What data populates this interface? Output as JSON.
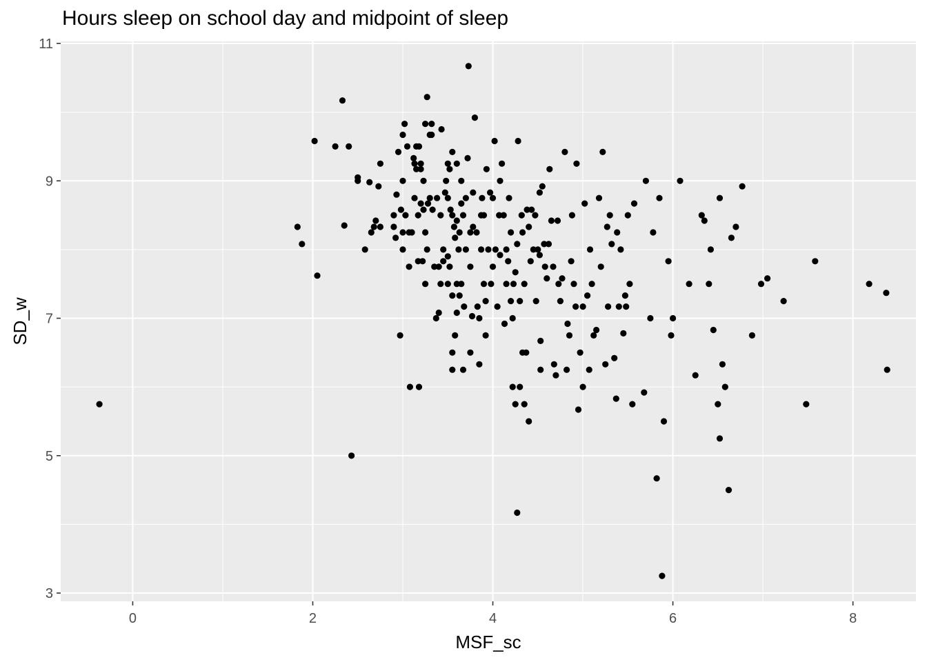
{
  "chart_data": {
    "type": "scatter",
    "title": "Hours sleep on school day and midpoint of sleep",
    "xlabel": "MSF_sc",
    "ylabel": "SD_w",
    "xlim": [
      -0.8,
      8.7
    ],
    "ylim": [
      2.88,
      11.03
    ],
    "x_ticks": [
      0,
      2,
      4,
      6,
      8
    ],
    "y_ticks": [
      3,
      5,
      7,
      9,
      11
    ],
    "grid": true,
    "colors": {
      "panel": "#ebebeb",
      "grid": "#ffffff",
      "point": "#000000"
    },
    "points": [
      [
        -0.37,
        5.75
      ],
      [
        1.83,
        8.33
      ],
      [
        1.88,
        8.08
      ],
      [
        2.02,
        9.58
      ],
      [
        2.05,
        7.62
      ],
      [
        2.25,
        9.5
      ],
      [
        2.33,
        10.17
      ],
      [
        2.35,
        8.35
      ],
      [
        2.4,
        9.5
      ],
      [
        2.43,
        5.0
      ],
      [
        2.5,
        9.0
      ],
      [
        2.5,
        9.05
      ],
      [
        2.58,
        8.0
      ],
      [
        2.63,
        8.98
      ],
      [
        2.65,
        8.25
      ],
      [
        2.68,
        8.33
      ],
      [
        2.7,
        8.42
      ],
      [
        2.73,
        8.92
      ],
      [
        2.75,
        8.33
      ],
      [
        2.75,
        9.25
      ],
      [
        2.9,
        8.5
      ],
      [
        2.9,
        8.33
      ],
      [
        2.92,
        8.17
      ],
      [
        2.93,
        8.8
      ],
      [
        2.95,
        9.42
      ],
      [
        2.97,
        6.75
      ],
      [
        2.98,
        8.58
      ],
      [
        3.0,
        8.0
      ],
      [
        3.0,
        8.25
      ],
      [
        3.0,
        9.0
      ],
      [
        3.0,
        9.67
      ],
      [
        3.02,
        9.83
      ],
      [
        3.03,
        8.5
      ],
      [
        3.05,
        9.5
      ],
      [
        3.07,
        7.75
      ],
      [
        3.07,
        8.25
      ],
      [
        3.08,
        6.0
      ],
      [
        3.1,
        8.25
      ],
      [
        3.12,
        9.33
      ],
      [
        3.13,
        8.75
      ],
      [
        3.13,
        9.25
      ],
      [
        3.15,
        9.17
      ],
      [
        3.15,
        9.5
      ],
      [
        3.17,
        8.5
      ],
      [
        3.17,
        7.83
      ],
      [
        3.18,
        6.0
      ],
      [
        3.18,
        9.5
      ],
      [
        3.2,
        9.25
      ],
      [
        3.2,
        8.67
      ],
      [
        3.2,
        9.17
      ],
      [
        3.22,
        7.83
      ],
      [
        3.23,
        8.58
      ],
      [
        3.23,
        9.0
      ],
      [
        3.25,
        9.83
      ],
      [
        3.25,
        8.25
      ],
      [
        3.25,
        7.5
      ],
      [
        3.27,
        8.0
      ],
      [
        3.27,
        10.22
      ],
      [
        3.28,
        8.67
      ],
      [
        3.3,
        8.75
      ],
      [
        3.3,
        9.67
      ],
      [
        3.32,
        9.67
      ],
      [
        3.32,
        9.83
      ],
      [
        3.33,
        8.58
      ],
      [
        3.35,
        7.75
      ],
      [
        3.37,
        7.0
      ],
      [
        3.38,
        8.75
      ],
      [
        3.4,
        7.08
      ],
      [
        3.4,
        7.75
      ],
      [
        3.42,
        8.5
      ],
      [
        3.42,
        7.5
      ],
      [
        3.43,
        9.75
      ],
      [
        3.45,
        8.0
      ],
      [
        3.45,
        7.83
      ],
      [
        3.47,
        8.83
      ],
      [
        3.48,
        9.0
      ],
      [
        3.5,
        7.5
      ],
      [
        3.5,
        9.25
      ],
      [
        3.5,
        8.75
      ],
      [
        3.5,
        7.9
      ],
      [
        3.52,
        9.17
      ],
      [
        3.52,
        7.75
      ],
      [
        3.53,
        8.58
      ],
      [
        3.55,
        8.5
      ],
      [
        3.55,
        6.25
      ],
      [
        3.55,
        6.5
      ],
      [
        3.55,
        7.33
      ],
      [
        3.55,
        9.42
      ],
      [
        3.57,
        8.33
      ],
      [
        3.58,
        6.75
      ],
      [
        3.58,
        8.17
      ],
      [
        3.6,
        7.08
      ],
      [
        3.6,
        7.5
      ],
      [
        3.6,
        9.25
      ],
      [
        3.6,
        8.42
      ],
      [
        3.62,
        8.0
      ],
      [
        3.63,
        7.33
      ],
      [
        3.63,
        8.25
      ],
      [
        3.65,
        7.5
      ],
      [
        3.65,
        8.67
      ],
      [
        3.65,
        9.0
      ],
      [
        3.67,
        6.25
      ],
      [
        3.67,
        8.5
      ],
      [
        3.68,
        7.17
      ],
      [
        3.7,
        8.75
      ],
      [
        3.7,
        8.0
      ],
      [
        3.72,
        9.33
      ],
      [
        3.73,
        10.67
      ],
      [
        3.75,
        6.5
      ],
      [
        3.75,
        7.75
      ],
      [
        3.75,
        8.25
      ],
      [
        3.77,
        7.03
      ],
      [
        3.78,
        8.83
      ],
      [
        3.78,
        8.33
      ],
      [
        3.8,
        9.92
      ],
      [
        3.82,
        8.25
      ],
      [
        3.83,
        7.17
      ],
      [
        3.85,
        6.33
      ],
      [
        3.85,
        7.0
      ],
      [
        3.87,
        8.0
      ],
      [
        3.87,
        8.5
      ],
      [
        3.88,
        8.75
      ],
      [
        3.9,
        8.5
      ],
      [
        3.9,
        7.5
      ],
      [
        3.92,
        6.75
      ],
      [
        3.92,
        7.25
      ],
      [
        3.93,
        9.17
      ],
      [
        3.95,
        8.0
      ],
      [
        3.97,
        8.83
      ],
      [
        3.98,
        7.5
      ],
      [
        4.0,
        8.75
      ],
      [
        4.0,
        7.75
      ],
      [
        4.02,
        9.58
      ],
      [
        4.03,
        8.0
      ],
      [
        4.05,
        7.17
      ],
      [
        4.07,
        8.5
      ],
      [
        4.08,
        7.92
      ],
      [
        4.08,
        9.0
      ],
      [
        4.1,
        9.25
      ],
      [
        4.12,
        8.5
      ],
      [
        4.13,
        6.92
      ],
      [
        4.15,
        7.5
      ],
      [
        4.15,
        8.0
      ],
      [
        4.17,
        7.83
      ],
      [
        4.18,
        8.75
      ],
      [
        4.2,
        7.25
      ],
      [
        4.2,
        8.25
      ],
      [
        4.22,
        6.0
      ],
      [
        4.22,
        7.0
      ],
      [
        4.23,
        7.5
      ],
      [
        4.25,
        5.75
      ],
      [
        4.25,
        7.67
      ],
      [
        4.27,
        4.17
      ],
      [
        4.27,
        8.08
      ],
      [
        4.28,
        9.58
      ],
      [
        4.3,
        6.0
      ],
      [
        4.3,
        7.25
      ],
      [
        4.32,
        8.5
      ],
      [
        4.33,
        6.5
      ],
      [
        4.33,
        8.25
      ],
      [
        4.35,
        5.75
      ],
      [
        4.35,
        7.5
      ],
      [
        4.37,
        6.5
      ],
      [
        4.38,
        8.58
      ],
      [
        4.4,
        5.5
      ],
      [
        4.4,
        8.33
      ],
      [
        4.42,
        7.83
      ],
      [
        4.43,
        8.58
      ],
      [
        4.45,
        8.0
      ],
      [
        4.47,
        8.5
      ],
      [
        4.48,
        7.25
      ],
      [
        4.5,
        8.0
      ],
      [
        4.52,
        7.92
      ],
      [
        4.52,
        8.83
      ],
      [
        4.53,
        6.25
      ],
      [
        4.53,
        6.67
      ],
      [
        4.55,
        8.92
      ],
      [
        4.57,
        8.08
      ],
      [
        4.58,
        7.75
      ],
      [
        4.6,
        7.58
      ],
      [
        4.62,
        8.08
      ],
      [
        4.63,
        9.17
      ],
      [
        4.65,
        8.42
      ],
      [
        4.67,
        7.75
      ],
      [
        4.68,
        6.33
      ],
      [
        4.7,
        6.17
      ],
      [
        4.72,
        8.42
      ],
      [
        4.73,
        7.5
      ],
      [
        4.75,
        7.25
      ],
      [
        4.77,
        7.58
      ],
      [
        4.8,
        9.42
      ],
      [
        4.82,
        6.25
      ],
      [
        4.83,
        6.92
      ],
      [
        4.85,
        6.75
      ],
      [
        4.87,
        7.83
      ],
      [
        4.88,
        8.5
      ],
      [
        4.9,
        7.5
      ],
      [
        4.92,
        7.17
      ],
      [
        4.93,
        9.25
      ],
      [
        4.95,
        5.67
      ],
      [
        4.97,
        6.5
      ],
      [
        5.0,
        7.17
      ],
      [
        5.0,
        6.0
      ],
      [
        5.02,
        8.67
      ],
      [
        5.05,
        7.33
      ],
      [
        5.07,
        6.25
      ],
      [
        5.08,
        8.0
      ],
      [
        5.1,
        7.5
      ],
      [
        5.12,
        6.75
      ],
      [
        5.15,
        6.83
      ],
      [
        5.18,
        8.75
      ],
      [
        5.2,
        7.75
      ],
      [
        5.22,
        9.42
      ],
      [
        5.25,
        6.33
      ],
      [
        5.27,
        8.33
      ],
      [
        5.28,
        7.17
      ],
      [
        5.3,
        8.5
      ],
      [
        5.32,
        8.08
      ],
      [
        5.35,
        6.42
      ],
      [
        5.37,
        5.83
      ],
      [
        5.38,
        8.25
      ],
      [
        5.4,
        7.17
      ],
      [
        5.42,
        8.0
      ],
      [
        5.45,
        6.78
      ],
      [
        5.47,
        7.33
      ],
      [
        5.48,
        7.17
      ],
      [
        5.5,
        8.5
      ],
      [
        5.52,
        7.5
      ],
      [
        5.55,
        5.75
      ],
      [
        5.57,
        8.67
      ],
      [
        5.68,
        5.92
      ],
      [
        5.7,
        9.0
      ],
      [
        5.75,
        7.0
      ],
      [
        5.78,
        8.25
      ],
      [
        5.82,
        4.67
      ],
      [
        5.85,
        8.75
      ],
      [
        5.88,
        3.25
      ],
      [
        5.9,
        5.5
      ],
      [
        5.95,
        7.83
      ],
      [
        5.98,
        6.75
      ],
      [
        6.0,
        7.0
      ],
      [
        6.08,
        9.0
      ],
      [
        6.18,
        7.5
      ],
      [
        6.25,
        6.17
      ],
      [
        6.32,
        8.5
      ],
      [
        6.35,
        8.42
      ],
      [
        6.4,
        7.5
      ],
      [
        6.42,
        8.0
      ],
      [
        6.45,
        6.83
      ],
      [
        6.5,
        5.75
      ],
      [
        6.52,
        8.75
      ],
      [
        6.52,
        5.25
      ],
      [
        6.55,
        6.33
      ],
      [
        6.58,
        6.0
      ],
      [
        6.62,
        4.5
      ],
      [
        6.65,
        8.17
      ],
      [
        6.7,
        8.33
      ],
      [
        6.77,
        8.92
      ],
      [
        6.88,
        6.75
      ],
      [
        6.98,
        7.5
      ],
      [
        7.05,
        7.58
      ],
      [
        7.23,
        7.25
      ],
      [
        7.48,
        5.75
      ],
      [
        7.58,
        7.83
      ],
      [
        8.18,
        7.5
      ],
      [
        8.37,
        7.37
      ],
      [
        8.38,
        6.25
      ]
    ]
  }
}
